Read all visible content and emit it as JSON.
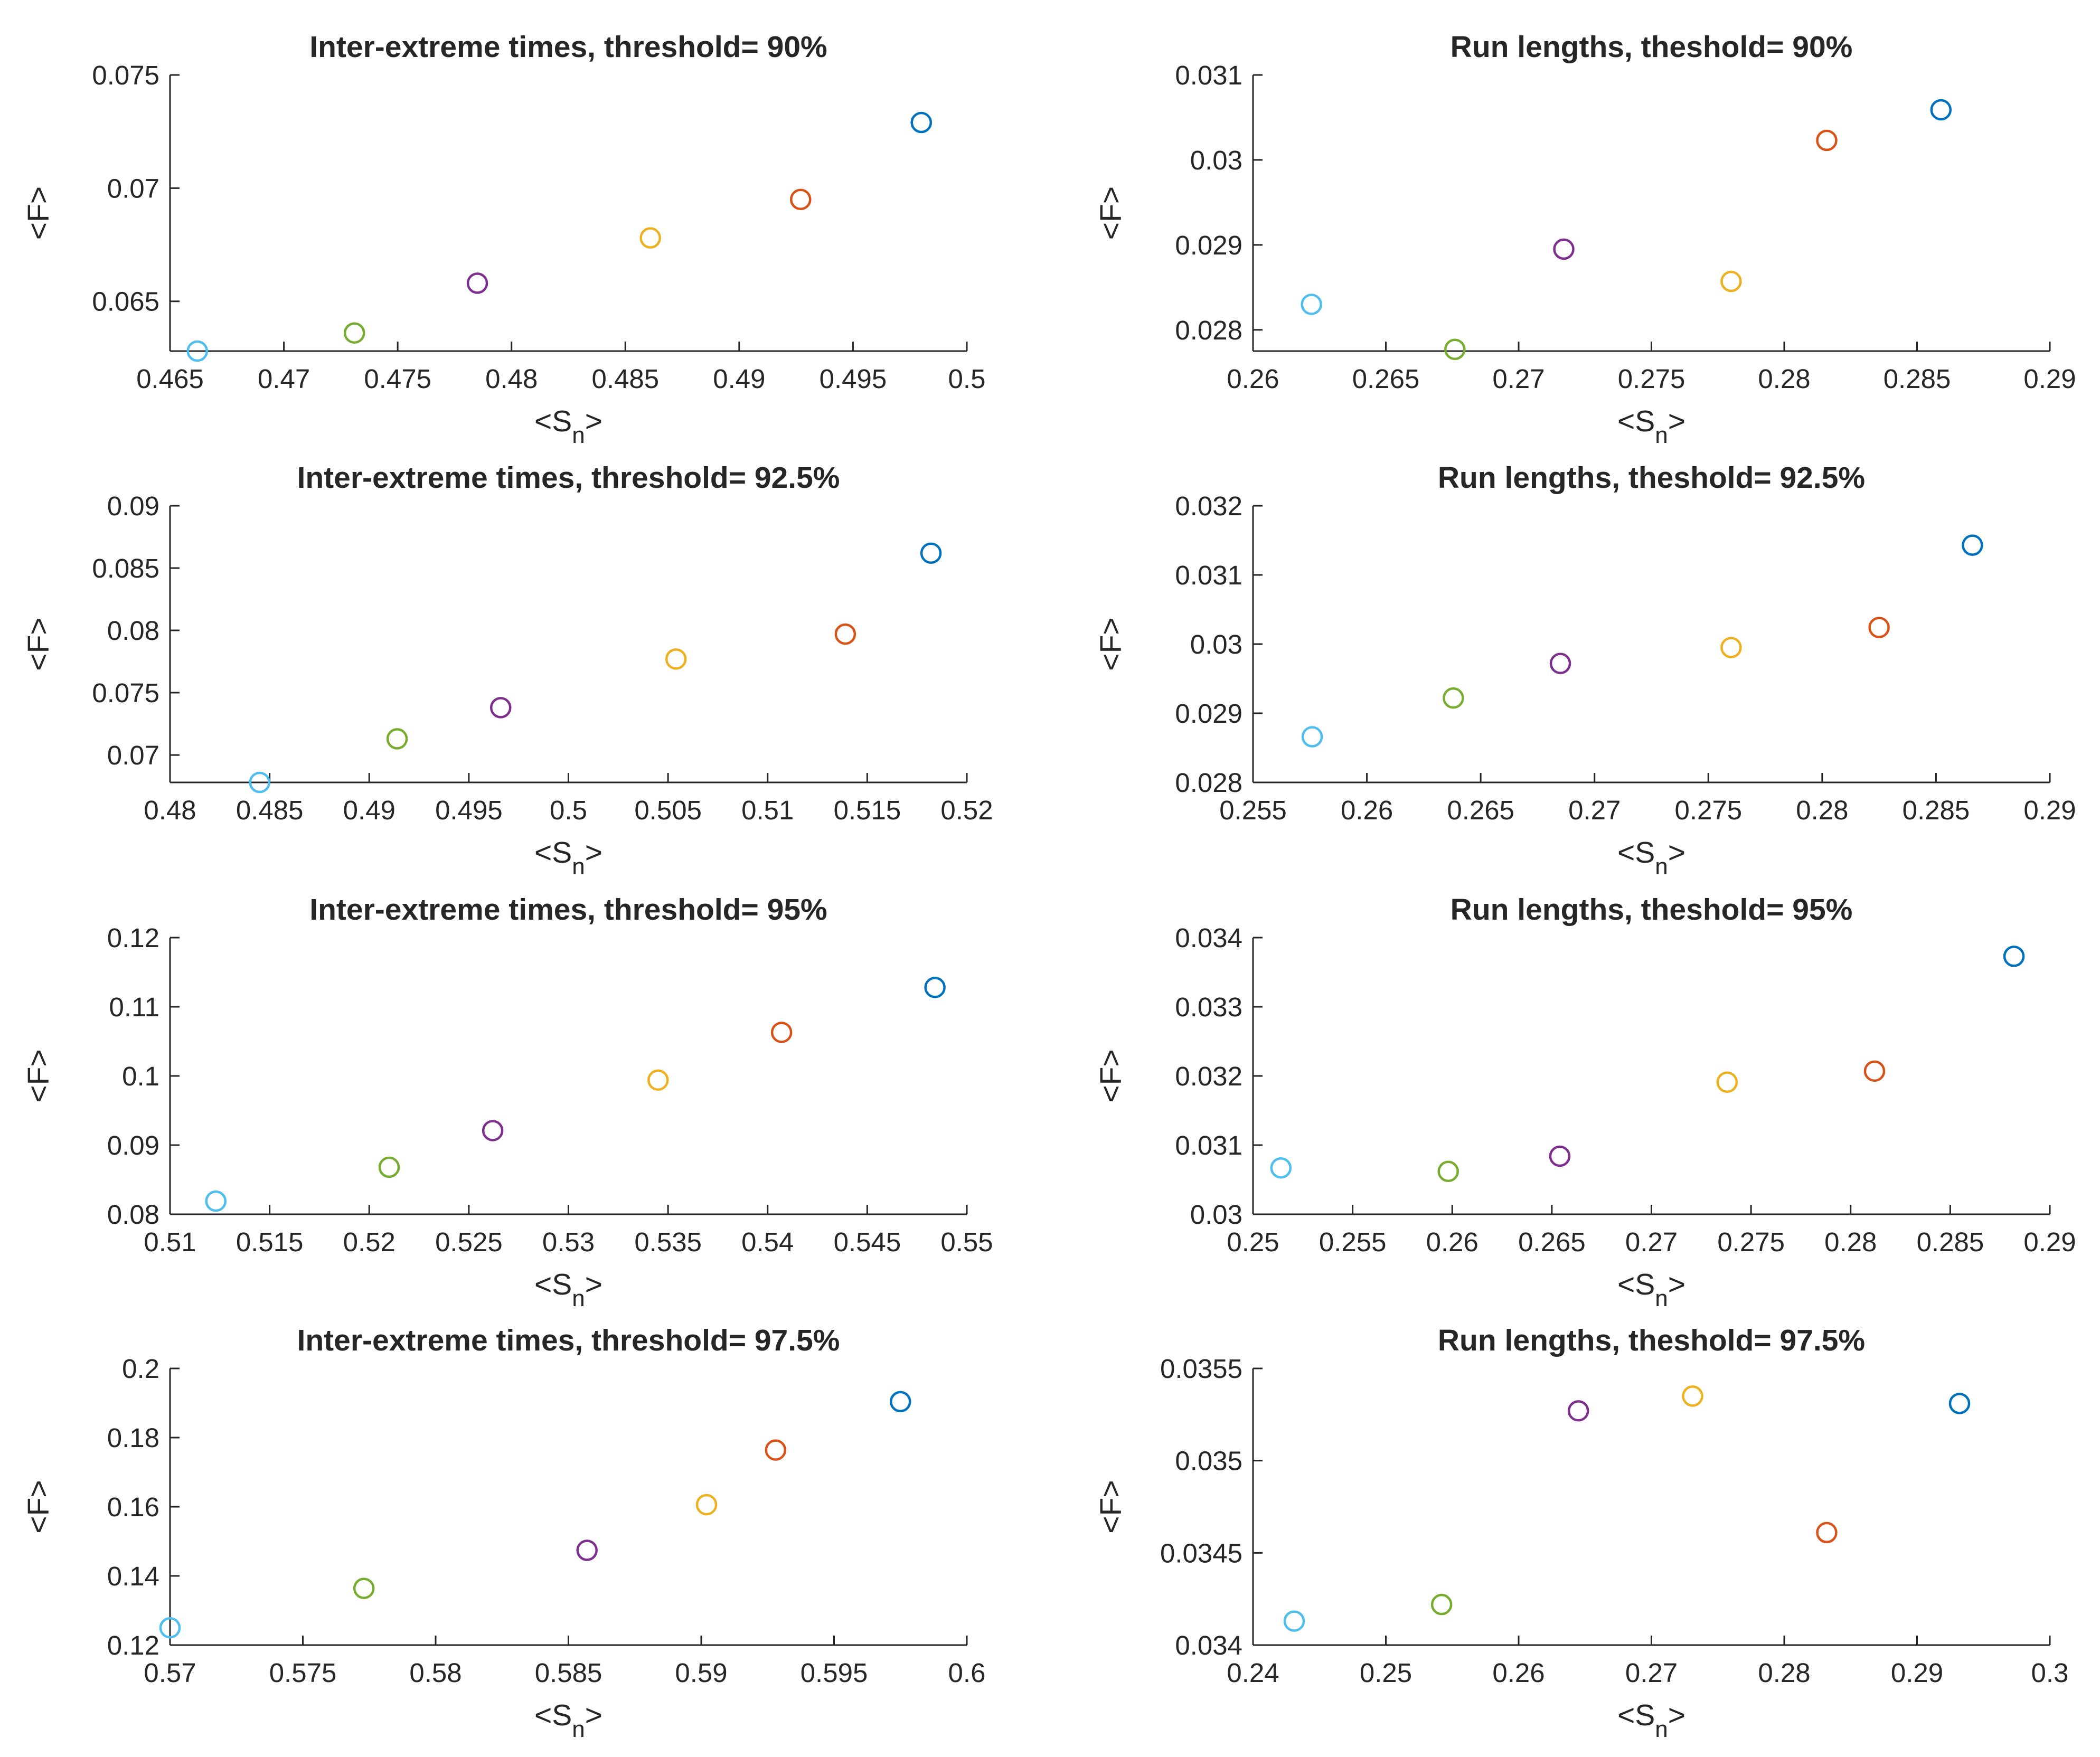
{
  "colors": [
    "#4DBEEE",
    "#77AC30",
    "#7E2F8E",
    "#EDB120",
    "#D95319",
    "#0072BD"
  ],
  "chart_data": [
    {
      "type": "scatter",
      "title": "Inter-extreme times, threshold= 90%",
      "xlabel_main": "<S",
      "xlabel_sub": "n",
      "xlabel_end": ">",
      "ylabel": "<F>",
      "xlim": [
        0.465,
        0.5
      ],
      "ylim": [
        0.0628,
        0.075
      ],
      "xticks": [
        0.465,
        0.47,
        0.475,
        0.48,
        0.485,
        0.49,
        0.495,
        0.5
      ],
      "yticks": [
        0.065,
        0.07,
        0.075
      ],
      "xtick_labels": [
        "0.465",
        "0.47",
        "0.475",
        "0.48",
        "0.485",
        "0.49",
        "0.495",
        "0.5"
      ],
      "ytick_labels": [
        "0.065",
        "0.07",
        "0.075"
      ],
      "x": [
        0.4662,
        0.4731,
        0.4785,
        0.4861,
        0.4927,
        0.498
      ],
      "y": [
        0.0628,
        0.0636,
        0.0658,
        0.0678,
        0.0695,
        0.0729
      ]
    },
    {
      "type": "scatter",
      "title": "Run lengths, theshold= 90%",
      "xlabel_main": "<S",
      "xlabel_sub": "n",
      "xlabel_end": ">",
      "ylabel": "<F>",
      "xlim": [
        0.26,
        0.29
      ],
      "ylim": [
        0.02775,
        0.031
      ],
      "xticks": [
        0.26,
        0.265,
        0.27,
        0.275,
        0.28,
        0.285,
        0.29
      ],
      "yticks": [
        0.028,
        0.029,
        0.03,
        0.031
      ],
      "xtick_labels": [
        "0.26",
        "0.265",
        "0.27",
        "0.275",
        "0.28",
        "0.285",
        "0.29"
      ],
      "ytick_labels": [
        "0.028",
        "0.029",
        "0.03",
        "0.031"
      ],
      "x": [
        0.2622,
        0.2676,
        0.2717,
        0.278,
        0.2816,
        0.2859
      ],
      "y": [
        0.0283,
        0.02777,
        0.02895,
        0.02857,
        0.03023,
        0.03059
      ]
    },
    {
      "type": "scatter",
      "title": "Inter-extreme times, threshold= 92.5%",
      "xlabel_main": "<S",
      "xlabel_sub": "n",
      "xlabel_end": ">",
      "ylabel": "<F>",
      "xlim": [
        0.48,
        0.52
      ],
      "ylim": [
        0.0678,
        0.09
      ],
      "xticks": [
        0.48,
        0.485,
        0.49,
        0.495,
        0.5,
        0.505,
        0.51,
        0.515,
        0.52
      ],
      "yticks": [
        0.07,
        0.075,
        0.08,
        0.085,
        0.09
      ],
      "xtick_labels": [
        "0.48",
        "0.485",
        "0.49",
        "0.495",
        "0.5",
        "0.505",
        "0.51",
        "0.515",
        "0.52"
      ],
      "ytick_labels": [
        "0.07",
        "0.075",
        "0.08",
        "0.085",
        "0.09"
      ],
      "x": [
        0.4845,
        0.4914,
        0.4966,
        0.5054,
        0.5139,
        0.5182
      ],
      "y": [
        0.0678,
        0.0713,
        0.0738,
        0.0777,
        0.0797,
        0.0862
      ]
    },
    {
      "type": "scatter",
      "title": "Run lengths, theshold= 92.5%",
      "xlabel_main": "<S",
      "xlabel_sub": "n",
      "xlabel_end": ">",
      "ylabel": "<F>",
      "xlim": [
        0.255,
        0.29
      ],
      "ylim": [
        0.028,
        0.032
      ],
      "xticks": [
        0.255,
        0.26,
        0.265,
        0.27,
        0.275,
        0.28,
        0.285,
        0.29
      ],
      "yticks": [
        0.028,
        0.029,
        0.03,
        0.031,
        0.032
      ],
      "xtick_labels": [
        "0.255",
        "0.26",
        "0.265",
        "0.27",
        "0.275",
        "0.28",
        "0.285",
        "0.29"
      ],
      "ytick_labels": [
        "0.028",
        "0.029",
        "0.03",
        "0.031",
        "0.032"
      ],
      "x": [
        0.2576,
        0.2638,
        0.2685,
        0.276,
        0.2825,
        0.2866
      ],
      "y": [
        0.02866,
        0.02922,
        0.02972,
        0.02995,
        0.03024,
        0.03143
      ]
    },
    {
      "type": "scatter",
      "title": "Inter-extreme times, threshold= 95%",
      "xlabel_main": "<S",
      "xlabel_sub": "n",
      "xlabel_end": ">",
      "ylabel": "<F>",
      "xlim": [
        0.51,
        0.55
      ],
      "ylim": [
        0.08,
        0.12
      ],
      "xticks": [
        0.51,
        0.515,
        0.52,
        0.525,
        0.53,
        0.535,
        0.54,
        0.545,
        0.55
      ],
      "yticks": [
        0.08,
        0.09,
        0.1,
        0.11,
        0.12
      ],
      "xtick_labels": [
        "0.51",
        "0.515",
        "0.52",
        "0.525",
        "0.53",
        "0.535",
        "0.54",
        "0.545",
        "0.55"
      ],
      "ytick_labels": [
        "0.08",
        "0.09",
        "0.1",
        "0.11",
        "0.12"
      ],
      "x": [
        0.5123,
        0.521,
        0.5262,
        0.5345,
        0.5407,
        0.5484
      ],
      "y": [
        0.0819,
        0.0868,
        0.0921,
        0.0994,
        0.1063,
        0.1128
      ]
    },
    {
      "type": "scatter",
      "title": "Run lengths, theshold= 95%",
      "xlabel_main": "<S",
      "xlabel_sub": "n",
      "xlabel_end": ">",
      "ylabel": "<F>",
      "xlim": [
        0.25,
        0.29
      ],
      "ylim": [
        0.03,
        0.034
      ],
      "xticks": [
        0.25,
        0.255,
        0.26,
        0.265,
        0.27,
        0.275,
        0.28,
        0.285,
        0.29
      ],
      "yticks": [
        0.03,
        0.031,
        0.032,
        0.033,
        0.034
      ],
      "xtick_labels": [
        "0.25",
        "0.255",
        "0.26",
        "0.265",
        "0.27",
        "0.275",
        "0.28",
        "0.285",
        "0.29"
      ],
      "ytick_labels": [
        "0.03",
        "0.031",
        "0.032",
        "0.033",
        "0.034"
      ],
      "x": [
        0.2514,
        0.2598,
        0.2654,
        0.2738,
        0.2812,
        0.2882
      ],
      "y": [
        0.03067,
        0.03062,
        0.03084,
        0.03191,
        0.03207,
        0.03373
      ]
    },
    {
      "type": "scatter",
      "title": "Inter-extreme times, threshold= 97.5%",
      "xlabel_main": "<S",
      "xlabel_sub": "n",
      "xlabel_end": ">",
      "ylabel": "<F>",
      "xlim": [
        0.57,
        0.6
      ],
      "ylim": [
        0.12,
        0.2
      ],
      "xticks": [
        0.57,
        0.575,
        0.58,
        0.585,
        0.59,
        0.595,
        0.6
      ],
      "yticks": [
        0.12,
        0.14,
        0.16,
        0.18,
        0.2
      ],
      "xtick_labels": [
        "0.57",
        "0.575",
        "0.58",
        "0.585",
        "0.59",
        "0.595",
        "0.6"
      ],
      "ytick_labels": [
        "0.12",
        "0.14",
        "0.16",
        "0.18",
        "0.2"
      ],
      "x": [
        0.57,
        0.5773,
        0.5857,
        0.5902,
        0.5928,
        0.5975
      ],
      "y": [
        0.125,
        0.1364,
        0.1474,
        0.1606,
        0.1764,
        0.1904
      ]
    },
    {
      "type": "scatter",
      "title": "Run lengths, theshold= 97.5%",
      "xlabel_main": "<S",
      "xlabel_sub": "n",
      "xlabel_end": ">",
      "ylabel": "<F>",
      "xlim": [
        0.24,
        0.3
      ],
      "ylim": [
        0.034,
        0.0355
      ],
      "xticks": [
        0.24,
        0.25,
        0.26,
        0.27,
        0.28,
        0.29,
        0.3
      ],
      "yticks": [
        0.034,
        0.0345,
        0.035,
        0.0355
      ],
      "xtick_labels": [
        "0.24",
        "0.25",
        "0.26",
        "0.27",
        "0.28",
        "0.29",
        "0.3"
      ],
      "ytick_labels": [
        "0.034",
        "0.0345",
        "0.035",
        "0.0355"
      ],
      "x": [
        0.2431,
        0.2542,
        0.2645,
        0.2731,
        0.2832,
        0.2932
      ],
      "y": [
        0.03413,
        0.03422,
        0.03527,
        0.03535,
        0.03461,
        0.03531
      ]
    }
  ]
}
